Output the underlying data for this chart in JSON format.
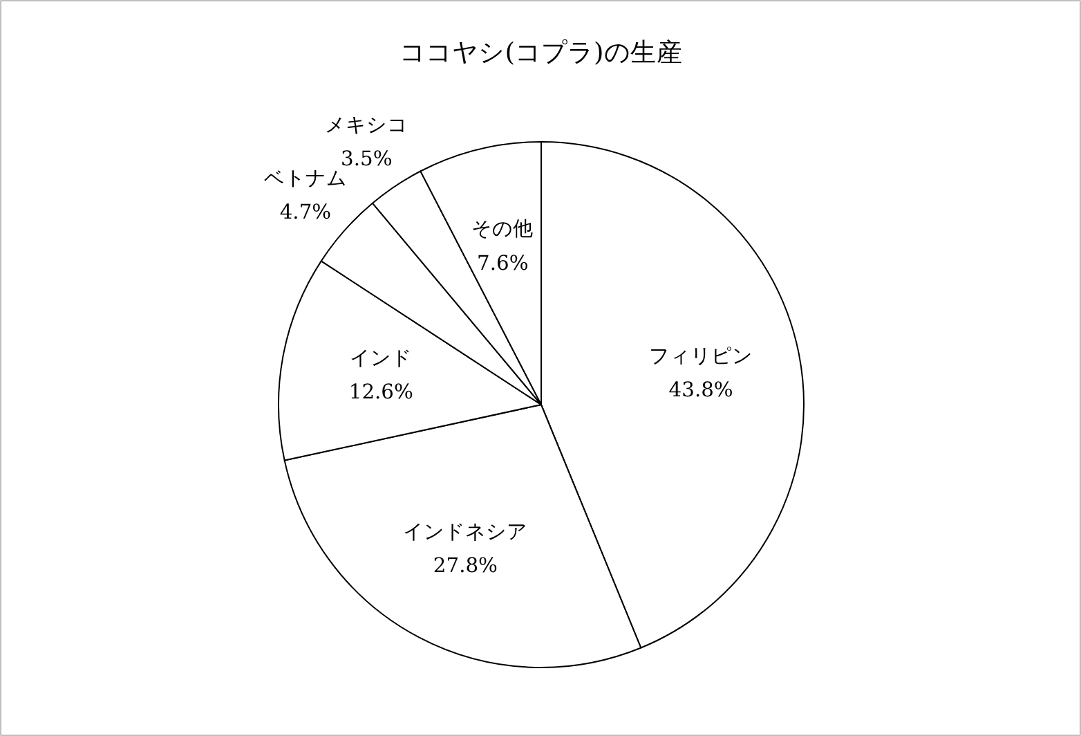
{
  "chart_data": {
    "type": "pie",
    "title": "ココヤシ(コプラ)の生産",
    "categories": [
      "フィリピン",
      "インドネシア",
      "インド",
      "ベトナム",
      "メキシコ",
      "その他"
    ],
    "values": [
      43.8,
      27.8,
      12.6,
      4.7,
      3.5,
      7.6
    ],
    "value_labels": [
      "43.8%",
      "27.8%",
      "12.6%",
      "4.7%",
      "3.5%",
      "7.6%"
    ],
    "colors": [
      "#ffffff",
      "#ffffff",
      "#ffffff",
      "#ffffff",
      "#ffffff",
      "#ffffff"
    ]
  }
}
